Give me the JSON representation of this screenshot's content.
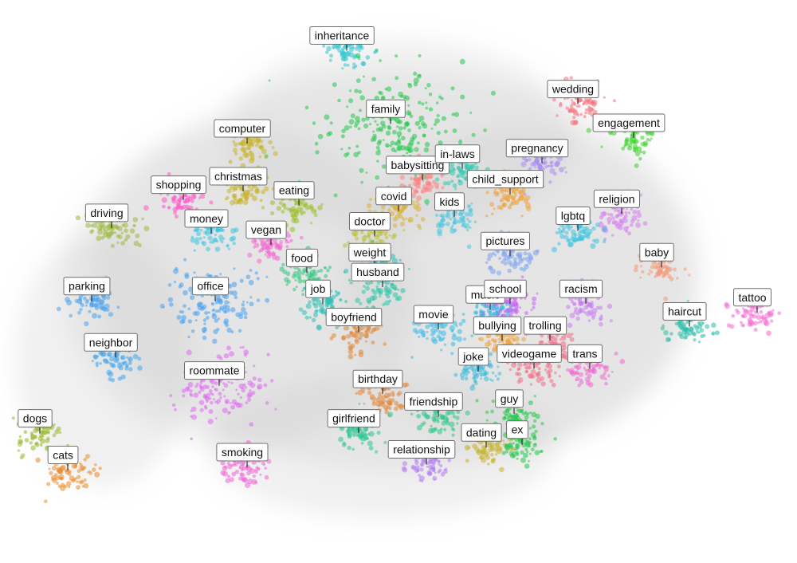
{
  "chart_data": {
    "type": "scatter",
    "title": "",
    "xlabel": "",
    "ylabel": "",
    "grid": false,
    "legend": "none",
    "xlim": [
      0,
      100
    ],
    "ylim": [
      0,
      100
    ],
    "background_color": "#c9c9c9",
    "clusters": [
      {
        "label": "inheritance",
        "x": 43.5,
        "y": 91.0,
        "color": "#33c4cf"
      },
      {
        "label": "family",
        "x": 49.0,
        "y": 78.0,
        "color": "#22c94a"
      },
      {
        "label": "wedding",
        "x": 72.5,
        "y": 81.5,
        "color": "#f2717b"
      },
      {
        "label": "engagement",
        "x": 79.5,
        "y": 75.5,
        "color": "#3ecf2b"
      },
      {
        "label": "computer",
        "x": 31.0,
        "y": 74.5,
        "color": "#c9b52d"
      },
      {
        "label": "christmas",
        "x": 30.5,
        "y": 66.0,
        "color": "#c8b32c"
      },
      {
        "label": "babysitting",
        "x": 53.0,
        "y": 68.0,
        "color": "#ff7f7f"
      },
      {
        "label": "in-laws",
        "x": 58.0,
        "y": 70.0,
        "color": "#2fc9b3"
      },
      {
        "label": "pregnancy",
        "x": 68.0,
        "y": 71.0,
        "color": "#a98cf4"
      },
      {
        "label": "child_support",
        "x": 64.0,
        "y": 65.5,
        "color": "#f0a33a"
      },
      {
        "label": "shopping",
        "x": 23.0,
        "y": 64.5,
        "color": "#ff59c8"
      },
      {
        "label": "eating",
        "x": 37.5,
        "y": 63.5,
        "color": "#9bbf2a"
      },
      {
        "label": "covid",
        "x": 50.0,
        "y": 62.5,
        "color": "#d7b23a"
      },
      {
        "label": "kids",
        "x": 57.0,
        "y": 61.5,
        "color": "#49c7df"
      },
      {
        "label": "religion",
        "x": 78.0,
        "y": 62.0,
        "color": "#d77af2"
      },
      {
        "label": "driving",
        "x": 14.0,
        "y": 59.5,
        "color": "#9cb83a"
      },
      {
        "label": "money",
        "x": 26.5,
        "y": 58.5,
        "color": "#3ec6e0"
      },
      {
        "label": "doctor",
        "x": 47.0,
        "y": 58.0,
        "color": "#bcc23b"
      },
      {
        "label": "lgbtq",
        "x": 72.5,
        "y": 59.0,
        "color": "#3ec4e0"
      },
      {
        "label": "vegan",
        "x": 34.0,
        "y": 56.5,
        "color": "#f26ad1"
      },
      {
        "label": "pictures",
        "x": 64.0,
        "y": 54.5,
        "color": "#7da3f2"
      },
      {
        "label": "food",
        "x": 38.5,
        "y": 51.5,
        "color": "#2fc97f"
      },
      {
        "label": "weight",
        "x": 47.0,
        "y": 52.5,
        "color": "#2dbfb5"
      },
      {
        "label": "baby",
        "x": 83.0,
        "y": 52.5,
        "color": "#f39a7b"
      },
      {
        "label": "husband",
        "x": 48.0,
        "y": 49.0,
        "color": "#2cc6a5"
      },
      {
        "label": "music",
        "x": 61.5,
        "y": 45.0,
        "color": "#2fb5e8"
      },
      {
        "label": "school",
        "x": 64.0,
        "y": 46.0,
        "color": "#cc65f2"
      },
      {
        "label": "parking",
        "x": 11.5,
        "y": 46.5,
        "color": "#4aa3ef"
      },
      {
        "label": "office",
        "x": 27.0,
        "y": 46.5,
        "color": "#4aa3ef"
      },
      {
        "label": "job",
        "x": 40.5,
        "y": 46.0,
        "color": "#2fc0b8"
      },
      {
        "label": "racism",
        "x": 73.5,
        "y": 46.0,
        "color": "#c87df2"
      },
      {
        "label": "movie",
        "x": 55.0,
        "y": 41.5,
        "color": "#3bbde8"
      },
      {
        "label": "boyfriend",
        "x": 45.0,
        "y": 41.0,
        "color": "#e0893a"
      },
      {
        "label": "haircut",
        "x": 86.5,
        "y": 42.0,
        "color": "#2cbfa8"
      },
      {
        "label": "tattoo",
        "x": 95.0,
        "y": 44.5,
        "color": "#f26ad1"
      },
      {
        "label": "bullying",
        "x": 63.0,
        "y": 39.5,
        "color": "#f0a33a"
      },
      {
        "label": "trolling",
        "x": 69.0,
        "y": 39.5,
        "color": "#f27088"
      },
      {
        "label": "neighbor",
        "x": 14.5,
        "y": 36.5,
        "color": "#3ea6ef"
      },
      {
        "label": "joke",
        "x": 60.0,
        "y": 34.0,
        "color": "#3fbcd8"
      },
      {
        "label": "videogame",
        "x": 67.0,
        "y": 34.5,
        "color": "#f27088"
      },
      {
        "label": "trans",
        "x": 74.0,
        "y": 34.5,
        "color": "#f26ad1"
      },
      {
        "label": "roommate",
        "x": 27.5,
        "y": 31.5,
        "color": "#e06af2"
      },
      {
        "label": "birthday",
        "x": 48.0,
        "y": 30.0,
        "color": "#e0893a"
      },
      {
        "label": "friendship",
        "x": 55.0,
        "y": 26.0,
        "color": "#2cc68a"
      },
      {
        "label": "guy",
        "x": 64.5,
        "y": 26.5,
        "color": "#22c94a"
      },
      {
        "label": "dogs",
        "x": 5.0,
        "y": 23.0,
        "color": "#98b82e"
      },
      {
        "label": "girlfriend",
        "x": 45.0,
        "y": 23.0,
        "color": "#2cc695"
      },
      {
        "label": "dating",
        "x": 61.0,
        "y": 20.5,
        "color": "#c8b32c"
      },
      {
        "label": "ex",
        "x": 65.5,
        "y": 21.0,
        "color": "#22c94a"
      },
      {
        "label": "cats",
        "x": 8.5,
        "y": 16.5,
        "color": "#e98b2a"
      },
      {
        "label": "smoking",
        "x": 31.0,
        "y": 17.0,
        "color": "#ef66d6"
      },
      {
        "label": "relationship",
        "x": 53.5,
        "y": 17.5,
        "color": "#b27df2"
      }
    ]
  }
}
